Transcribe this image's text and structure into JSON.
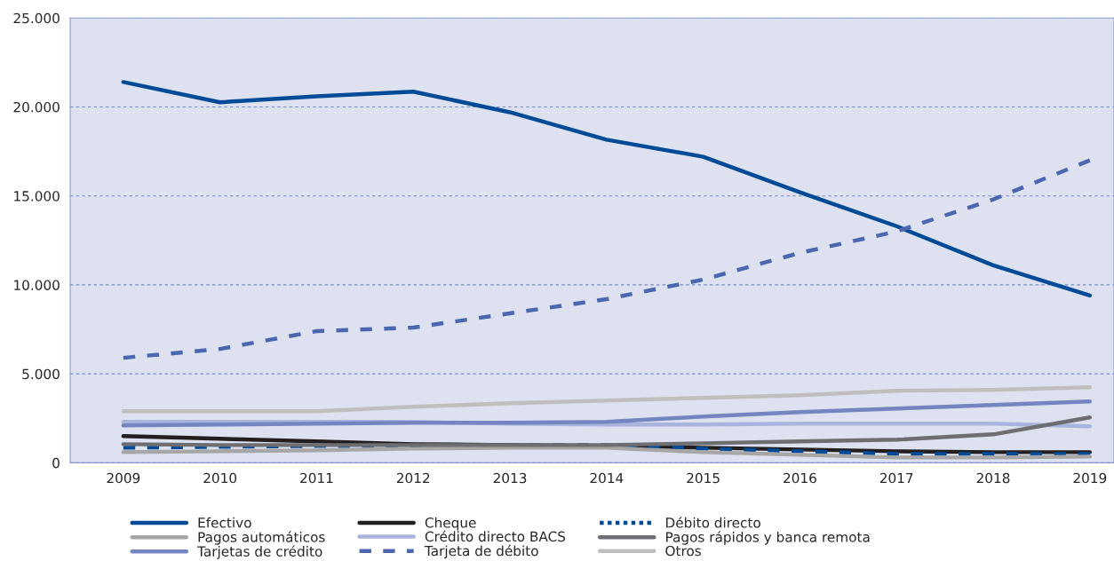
{
  "chart_data": {
    "type": "line",
    "categories": [
      "2009",
      "2010",
      "2011",
      "2012",
      "2013",
      "2014",
      "2015",
      "2016",
      "2017",
      "2018",
      "2019"
    ],
    "ylim": [
      0,
      25000
    ],
    "yticks": [
      {
        "value": 0,
        "label": "0"
      },
      {
        "value": 5000,
        "label": "5.000"
      },
      {
        "value": 10000,
        "label": "10.000"
      },
      {
        "value": 15000,
        "label": "15.000"
      },
      {
        "value": 20000,
        "label": "20.000"
      },
      {
        "value": 25000,
        "label": "25.000"
      }
    ],
    "grid": "y",
    "legend": "bottom",
    "marker": "none",
    "series": [
      {
        "name": "Efectivo",
        "color": "#004a97",
        "line_style": "solid",
        "values": [
          21400,
          20260,
          20600,
          20860,
          19700,
          18160,
          17200,
          15200,
          13300,
          11100,
          9400
        ]
      },
      {
        "name": "Cheque",
        "color": "#231f20",
        "line_style": "solid",
        "values": [
          1500,
          1350,
          1200,
          1050,
          1000,
          950,
          850,
          750,
          650,
          600,
          600
        ]
      },
      {
        "name": "Débito directo",
        "color": "#004a97",
        "line_style": "dotted",
        "values": [
          850,
          900,
          950,
          950,
          1000,
          1000,
          800,
          650,
          500,
          500,
          500
        ]
      },
      {
        "name": "Pagos automáticos",
        "color": "#a6a6a6",
        "line_style": "solid",
        "values": [
          600,
          650,
          700,
          800,
          850,
          850,
          600,
          450,
          300,
          300,
          350
        ]
      },
      {
        "name": "Crédito directo BACS",
        "color": "#a8b4db",
        "line_style": "solid",
        "values": [
          2300,
          2300,
          2300,
          2300,
          2200,
          2150,
          2150,
          2200,
          2200,
          2200,
          2050
        ]
      },
      {
        "name": "Pagos rápidos y banca remota",
        "color": "#6d6e71",
        "line_style": "solid",
        "values": [
          1050,
          1000,
          1000,
          1000,
          1000,
          1000,
          1100,
          1200,
          1300,
          1600,
          2550
        ]
      },
      {
        "name": "Tarjetas de crédito",
        "color": "#7585c1",
        "line_style": "solid",
        "values": [
          2100,
          2150,
          2200,
          2250,
          2250,
          2300,
          2600,
          2850,
          3050,
          3250,
          3450
        ]
      },
      {
        "name": "Tarjeta de débito",
        "color": "#4a67b0",
        "line_style": "dashed",
        "values": [
          5900,
          6400,
          7400,
          7600,
          8400,
          9200,
          10300,
          11800,
          13000,
          14800,
          17000
        ]
      },
      {
        "name": "Otros",
        "color": "#bfbfbf",
        "line_style": "solid",
        "values": [
          2900,
          2900,
          2900,
          3150,
          3350,
          3500,
          3650,
          3800,
          4050,
          4100,
          4250
        ]
      }
    ]
  }
}
